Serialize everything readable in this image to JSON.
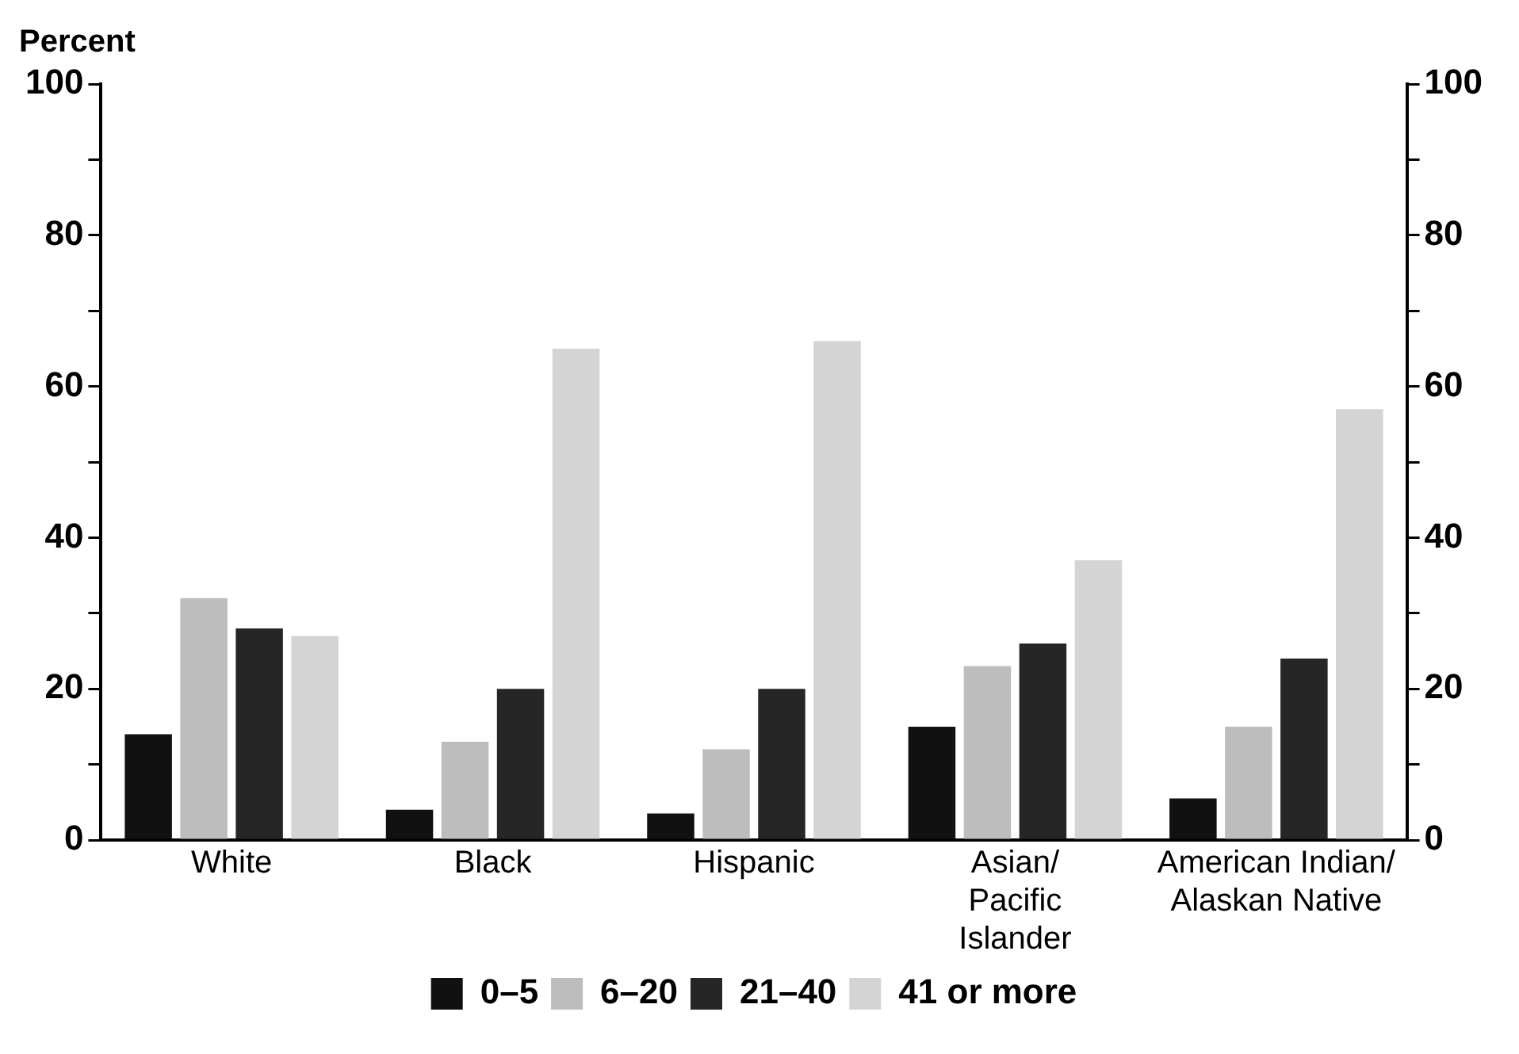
{
  "chart_data": {
    "type": "bar",
    "ylabel": "Percent",
    "categories": [
      "White",
      "Black",
      "Hispanic",
      "Asian/\nPacific\nIslander",
      "American Indian/\nAlaskan Native"
    ],
    "series": [
      {
        "name": "0–5",
        "color": "#111111",
        "values": [
          14,
          4,
          3.5,
          15,
          5.5
        ]
      },
      {
        "name": "6–20",
        "color": "#bdbdbd",
        "values": [
          32,
          13,
          12,
          23,
          15
        ]
      },
      {
        "name": "21–40",
        "color": "#262626",
        "values": [
          28,
          20,
          20,
          26,
          24
        ]
      },
      {
        "name": "41 or more",
        "color": "#d4d4d4",
        "values": [
          27,
          65,
          66,
          37,
          57
        ]
      }
    ],
    "ylim": [
      0,
      100
    ],
    "yticks": [
      0,
      {
        "value": 10,
        "label": null
      },
      20,
      {
        "value": 30,
        "label": null
      },
      40,
      {
        "value": 50,
        "label": null
      },
      60,
      {
        "value": 70,
        "label": null
      },
      80,
      {
        "value": 90,
        "label": null
      },
      100
    ],
    "y2lim": [
      0,
      100
    ],
    "y2ticks": [
      0,
      {
        "value": 10,
        "label": null
      },
      20,
      {
        "value": 30,
        "label": null
      },
      40,
      {
        "value": 50,
        "label": null
      },
      60,
      {
        "value": 70,
        "label": null
      },
      80,
      {
        "value": 90,
        "label": null
      },
      100
    ],
    "grid": false,
    "legend": "bottom"
  }
}
